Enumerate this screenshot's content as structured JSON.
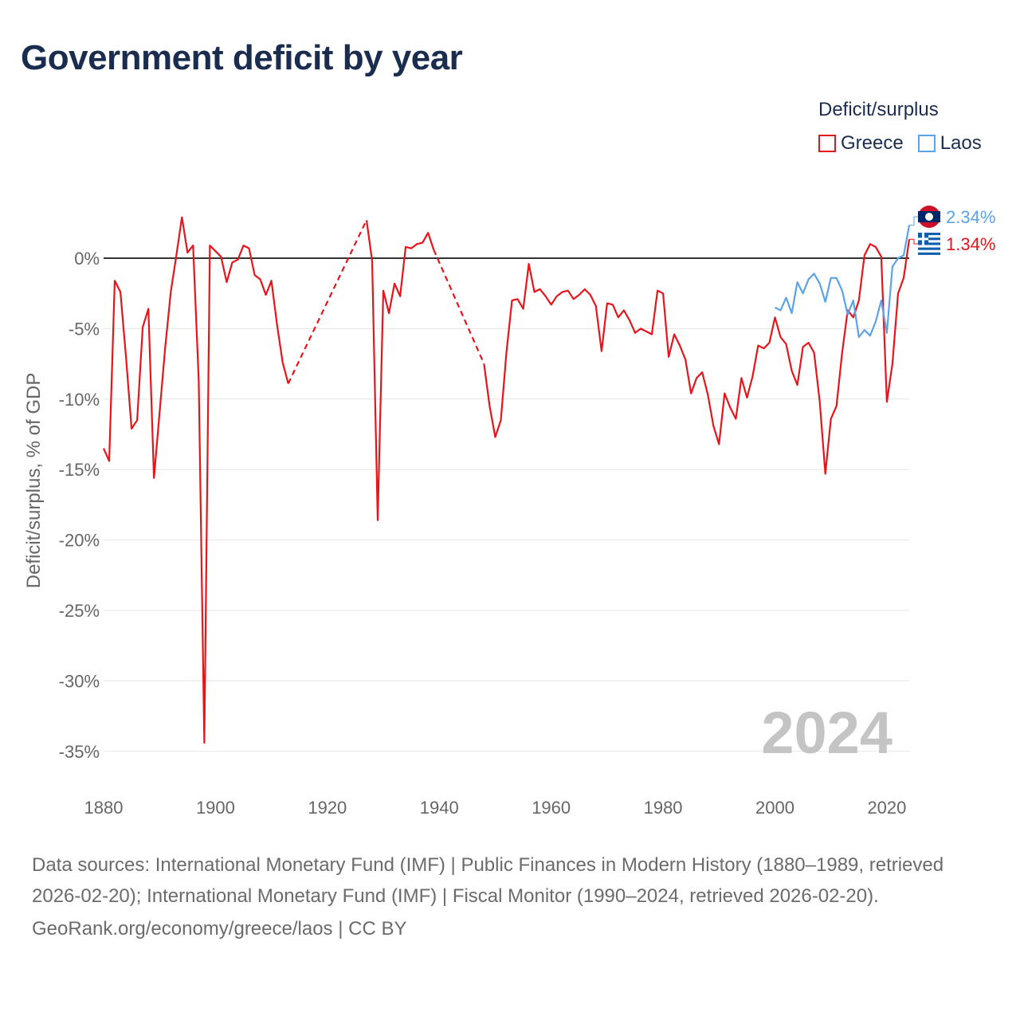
{
  "title": "Government deficit by year",
  "legend": {
    "title": "Deficit/surplus",
    "items": [
      {
        "label": "Greece",
        "color": "#e8141b"
      },
      {
        "label": "Laos",
        "color": "#5ba3e6"
      }
    ]
  },
  "year_watermark": "2024",
  "footer": {
    "sources": "Data sources: International Monetary Fund (IMF) | Public Finances in Modern History (1880–1989, retrieved 2026-02-20); International Monetary Fund (IMF) | Fiscal Monitor (1990–2024, retrieved 2026-02-20).",
    "link": "GeoRank.org/economy/greece/laos | CC BY"
  },
  "chart_data": {
    "type": "line",
    "title": "Government deficit by year",
    "xlabel": "",
    "ylabel": "Deficit/surplus, % of GDP",
    "xlim": [
      1880,
      2024
    ],
    "ylim": [
      -35,
      2.9
    ],
    "x_ticks": [
      1880,
      1900,
      1920,
      1940,
      1960,
      1980,
      2000,
      2020
    ],
    "y_ticks": [
      0,
      -5,
      -10,
      -15,
      -20,
      -25,
      -30,
      -35
    ],
    "y_tick_labels": [
      "0%",
      "-5%",
      "-10%",
      "-15%",
      "-20%",
      "-25%",
      "-30%",
      "-35%"
    ],
    "end_labels": [
      {
        "series": "Laos",
        "value": 2.34,
        "label": "2.34%",
        "color": "#5ba3e6"
      },
      {
        "series": "Greece",
        "value": 1.34,
        "label": "1.34%",
        "color": "#e8141b"
      }
    ],
    "series": [
      {
        "name": "Greece",
        "color": "#e8141b",
        "segments": [
          [
            [
              1880,
              -13.5
            ],
            [
              1881,
              -14.4
            ],
            [
              1882,
              -1.6
            ],
            [
              1883,
              -2.4
            ],
            [
              1884,
              -7
            ],
            [
              1885,
              -12.1
            ],
            [
              1886,
              -11.5
            ],
            [
              1887,
              -4.9
            ],
            [
              1888,
              -3.6
            ],
            [
              1889,
              -15.6
            ],
            [
              1890,
              -11
            ],
            [
              1891,
              -6.4
            ],
            [
              1892,
              -2.4
            ],
            [
              1893,
              0.2
            ],
            [
              1894,
              2.9
            ],
            [
              1895,
              0.4
            ],
            [
              1896,
              0.9
            ],
            [
              1897,
              -8.7
            ],
            [
              1898,
              -34.4
            ],
            [
              1899,
              0.9
            ],
            [
              1900,
              0.5
            ],
            [
              1901,
              0.1
            ],
            [
              1902,
              -1.7
            ],
            [
              1903,
              -0.3
            ],
            [
              1904,
              -0.1
            ],
            [
              1905,
              0.9
            ],
            [
              1906,
              0.7
            ],
            [
              1907,
              -1.2
            ],
            [
              1908,
              -1.5
            ],
            [
              1909,
              -2.6
            ],
            [
              1910,
              -1.6
            ],
            [
              1911,
              -4.7
            ],
            [
              1912,
              -7.4
            ],
            [
              1913,
              -8.9
            ]
          ],
          [
            [
              1927,
              2.7
            ],
            [
              1928,
              -0.2
            ],
            [
              1929,
              -18.6
            ],
            [
              1930,
              -2.3
            ],
            [
              1931,
              -3.9
            ],
            [
              1932,
              -1.8
            ],
            [
              1933,
              -2.7
            ],
            [
              1934,
              0.8
            ],
            [
              1935,
              0.7
            ],
            [
              1936,
              1
            ],
            [
              1937,
              1.1
            ],
            [
              1938,
              1.8
            ],
            [
              1939,
              0.6
            ]
          ],
          [
            [
              1948,
              -7.5
            ],
            [
              1949,
              -10.5
            ],
            [
              1950,
              -12.7
            ],
            [
              1951,
              -11.5
            ],
            [
              1952,
              -6.7
            ],
            [
              1953,
              -3
            ],
            [
              1954,
              -2.9
            ],
            [
              1955,
              -3.6
            ],
            [
              1956,
              -0.4
            ],
            [
              1957,
              -2.4
            ],
            [
              1958,
              -2.2
            ],
            [
              1959,
              -2.7
            ],
            [
              1960,
              -3.3
            ],
            [
              1961,
              -2.7
            ],
            [
              1962,
              -2.4
            ],
            [
              1963,
              -2.3
            ],
            [
              1964,
              -2.9
            ],
            [
              1965,
              -2.6
            ],
            [
              1966,
              -2.2
            ],
            [
              1967,
              -2.6
            ],
            [
              1968,
              -3.4
            ],
            [
              1969,
              -6.6
            ],
            [
              1970,
              -3.2
            ],
            [
              1971,
              -3.3
            ],
            [
              1972,
              -4.2
            ],
            [
              1973,
              -3.7
            ],
            [
              1974,
              -4.4
            ],
            [
              1975,
              -5.3
            ],
            [
              1976,
              -5
            ],
            [
              1977,
              -5.2
            ],
            [
              1978,
              -5.4
            ],
            [
              1979,
              -2.3
            ],
            [
              1980,
              -2.5
            ],
            [
              1981,
              -7
            ],
            [
              1982,
              -5.4
            ],
            [
              1983,
              -6.2
            ],
            [
              1984,
              -7.2
            ],
            [
              1985,
              -9.6
            ],
            [
              1986,
              -8.5
            ],
            [
              1987,
              -8.1
            ],
            [
              1988,
              -9.7
            ],
            [
              1989,
              -11.9
            ],
            [
              1990,
              -13.2
            ],
            [
              1991,
              -9.6
            ],
            [
              1992,
              -10.6
            ],
            [
              1993,
              -11.4
            ],
            [
              1994,
              -8.5
            ],
            [
              1995,
              -9.9
            ],
            [
              1996,
              -8.4
            ],
            [
              1997,
              -6.2
            ],
            [
              1998,
              -6.4
            ],
            [
              1999,
              -6
            ],
            [
              2000,
              -4.2
            ],
            [
              2001,
              -5.6
            ],
            [
              2002,
              -6.1
            ],
            [
              2003,
              -8
            ],
            [
              2004,
              -9
            ],
            [
              2005,
              -6.3
            ],
            [
              2006,
              -6
            ],
            [
              2007,
              -6.7
            ],
            [
              2008,
              -10.2
            ],
            [
              2009,
              -15.3
            ],
            [
              2010,
              -11.4
            ],
            [
              2011,
              -10.5
            ],
            [
              2012,
              -6.7
            ],
            [
              2013,
              -3.7
            ],
            [
              2014,
              -4.2
            ],
            [
              2015,
              -3
            ],
            [
              2016,
              0.2
            ],
            [
              2017,
              1
            ],
            [
              2018,
              0.8
            ],
            [
              2019,
              0.1
            ],
            [
              2020,
              -10.2
            ],
            [
              2021,
              -7.5
            ],
            [
              2022,
              -2.5
            ],
            [
              2023,
              -1.4
            ],
            [
              2024,
              1.34
            ]
          ]
        ],
        "gaps": [
          [
            [
              1913,
              -8.9
            ],
            [
              1927,
              2.7
            ]
          ],
          [
            [
              1939,
              0.6
            ],
            [
              1948,
              -7.5
            ]
          ]
        ]
      },
      {
        "name": "Laos",
        "color": "#5ba3e6",
        "segments": [
          [
            [
              2000,
              -3.5
            ],
            [
              2001,
              -3.7
            ],
            [
              2002,
              -2.8
            ],
            [
              2003,
              -3.9
            ],
            [
              2004,
              -1.7
            ],
            [
              2005,
              -2.5
            ],
            [
              2006,
              -1.5
            ],
            [
              2007,
              -1.1
            ],
            [
              2008,
              -1.8
            ],
            [
              2009,
              -3.1
            ],
            [
              2010,
              -1.4
            ],
            [
              2011,
              -1.4
            ],
            [
              2012,
              -2.3
            ],
            [
              2013,
              -4
            ],
            [
              2014,
              -3
            ],
            [
              2015,
              -5.6
            ],
            [
              2016,
              -5.1
            ],
            [
              2017,
              -5.5
            ],
            [
              2018,
              -4.5
            ],
            [
              2019,
              -3
            ],
            [
              2020,
              -5.3
            ],
            [
              2021,
              -0.6
            ],
            [
              2022,
              0
            ],
            [
              2023,
              0.2
            ],
            [
              2024,
              2.34
            ]
          ]
        ],
        "gaps": []
      }
    ]
  }
}
